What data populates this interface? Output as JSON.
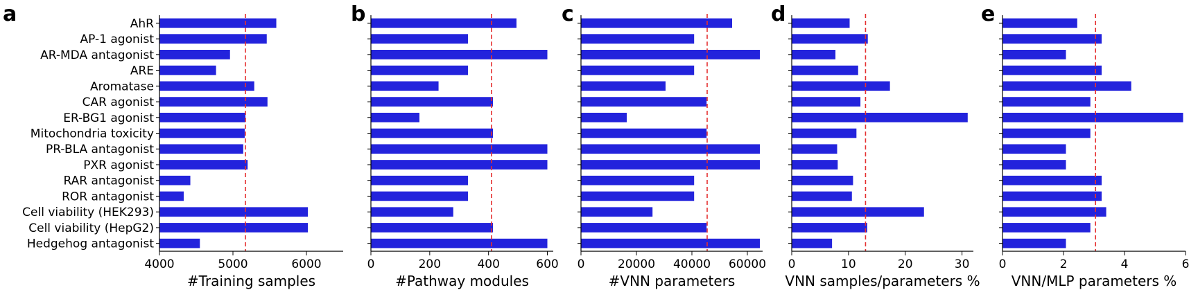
{
  "chart_data": {
    "type": "bar",
    "orientation": "horizontal",
    "bar_color": "#2323dc",
    "reference_line_color": "#e53030",
    "categories": [
      "AhR",
      "AP-1 agonist",
      "AR-MDA antagonist",
      "ARE",
      "Aromatase",
      "CAR agonist",
      "ER-BG1 agonist",
      "Mitochondria toxicity",
      "PR-BLA antagonist",
      "PXR agonist",
      "RAR antagonist",
      "ROR antagonist",
      "Cell viability (HEK293)",
      "Cell viability (HepG2)",
      "Hedgehog antagonist"
    ],
    "panels": [
      {
        "letter": "a",
        "xlabel": "#Training samples",
        "xlim": [
          4000,
          6500
        ],
        "xticks": [
          4000,
          5000,
          6000
        ],
        "tick_labels": [
          "4000",
          "5000",
          "6000"
        ],
        "reference_line": 5170,
        "show_category_labels": true,
        "values": [
          5590,
          5460,
          4960,
          4770,
          5290,
          5470,
          5170,
          5160,
          5140,
          5200,
          4420,
          4330,
          6020,
          6020,
          4550
        ]
      },
      {
        "letter": "b",
        "xlabel": "#Pathway modules",
        "xlim": [
          0,
          620
        ],
        "xticks": [
          0,
          200,
          400,
          600
        ],
        "tick_labels": [
          "0",
          "200",
          "400",
          "600"
        ],
        "reference_line": 410,
        "show_category_labels": false,
        "values": [
          495,
          330,
          600,
          330,
          230,
          415,
          165,
          415,
          600,
          600,
          330,
          330,
          280,
          415,
          600
        ]
      },
      {
        "letter": "c",
        "xlabel": "#VNN parameters",
        "xlim": [
          0,
          65500
        ],
        "xticks": [
          0,
          20000,
          40000,
          60000
        ],
        "tick_labels": [
          "0",
          "20000",
          "40000",
          "60000"
        ],
        "reference_line": 45500,
        "show_category_labels": false,
        "values": [
          54500,
          40800,
          64500,
          40800,
          30500,
          45300,
          16500,
          45300,
          64500,
          64500,
          40800,
          40800,
          25800,
          45300,
          64500
        ]
      },
      {
        "letter": "d",
        "xlabel": "VNN samples/parameters %",
        "xlim": [
          0,
          32
        ],
        "xticks": [
          0,
          10,
          20,
          30
        ],
        "tick_labels": [
          "0",
          "10",
          "20",
          "30"
        ],
        "reference_line": 13,
        "show_category_labels": false,
        "values": [
          10.2,
          13.4,
          7.7,
          11.7,
          17.3,
          12.1,
          31.0,
          11.4,
          8.0,
          8.1,
          10.8,
          10.6,
          23.3,
          13.3,
          7.1
        ]
      },
      {
        "letter": "e",
        "xlabel": "VNN/MLP parameters %",
        "xlim": [
          0,
          6
        ],
        "xticks": [
          0,
          2,
          4,
          6
        ],
        "tick_labels": [
          "0",
          "2",
          "4",
          "6"
        ],
        "reference_line": 3.05,
        "show_category_labels": false,
        "values": [
          2.45,
          3.25,
          2.08,
          3.25,
          4.22,
          2.88,
          5.92,
          2.88,
          2.08,
          2.08,
          3.25,
          3.25,
          3.4,
          2.88,
          2.08
        ]
      }
    ]
  }
}
